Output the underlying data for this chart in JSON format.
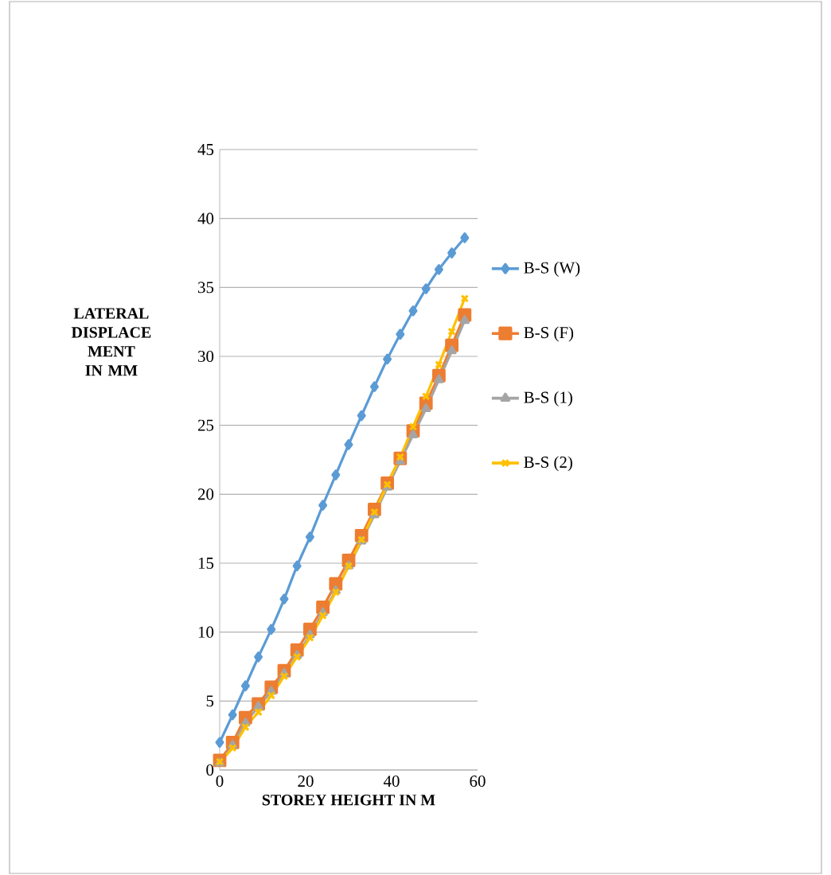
{
  "chart_data": {
    "type": "line",
    "xlabel": "STOREY  HEIGHT IN M",
    "ylabel": "LATERAL DISPLACE MENT IN MM",
    "x": [
      0,
      3,
      6,
      9,
      12,
      15,
      18,
      21,
      24,
      27,
      30,
      33,
      36,
      39,
      42,
      45,
      48,
      51,
      54,
      57
    ],
    "series": [
      {
        "name": "B-S (W)",
        "color": "#5b9bd5",
        "marker": "diamond",
        "values": [
          2,
          4,
          6.1,
          8.2,
          10.2,
          12.4,
          14.8,
          16.9,
          19.2,
          21.4,
          23.6,
          25.7,
          27.8,
          29.8,
          31.6,
          33.3,
          34.9,
          36.3,
          37.5,
          38.6
        ]
      },
      {
        "name": "B-S (F)",
        "color": "#ed7d31",
        "marker": "square",
        "values": [
          0.7,
          2.0,
          3.8,
          4.8,
          6.0,
          7.2,
          8.7,
          10.2,
          11.8,
          13.5,
          15.2,
          17.0,
          18.9,
          20.8,
          22.6,
          24.6,
          26.6,
          28.6,
          30.8,
          33.0
        ]
      },
      {
        "name": "B-S (1)",
        "color": "#a5a5a5",
        "marker": "triangle",
        "values": [
          0.5,
          1.8,
          3.4,
          4.6,
          5.7,
          7.0,
          8.3,
          9.8,
          11.4,
          13.0,
          14.8,
          16.6,
          18.5,
          20.5,
          22.4,
          24.3,
          26.2,
          28.3,
          30.4,
          32.6
        ]
      },
      {
        "name": "B-S (2)",
        "color": "#ffc000",
        "marker": "cross",
        "values": [
          0.6,
          1.6,
          3.1,
          4.2,
          5.4,
          6.8,
          8.2,
          9.6,
          11.2,
          12.9,
          14.8,
          16.7,
          18.7,
          20.7,
          22.7,
          24.9,
          27.1,
          29.4,
          31.8,
          34.2
        ]
      }
    ],
    "xlim": [
      0,
      60
    ],
    "xticks": [
      0,
      20,
      40,
      60
    ],
    "ylim": [
      0,
      45
    ],
    "yticks": [
      0,
      5,
      10,
      15,
      20,
      25,
      30,
      35,
      40,
      45
    ],
    "grid": "y",
    "legend": "right",
    "line_style": "solid"
  }
}
